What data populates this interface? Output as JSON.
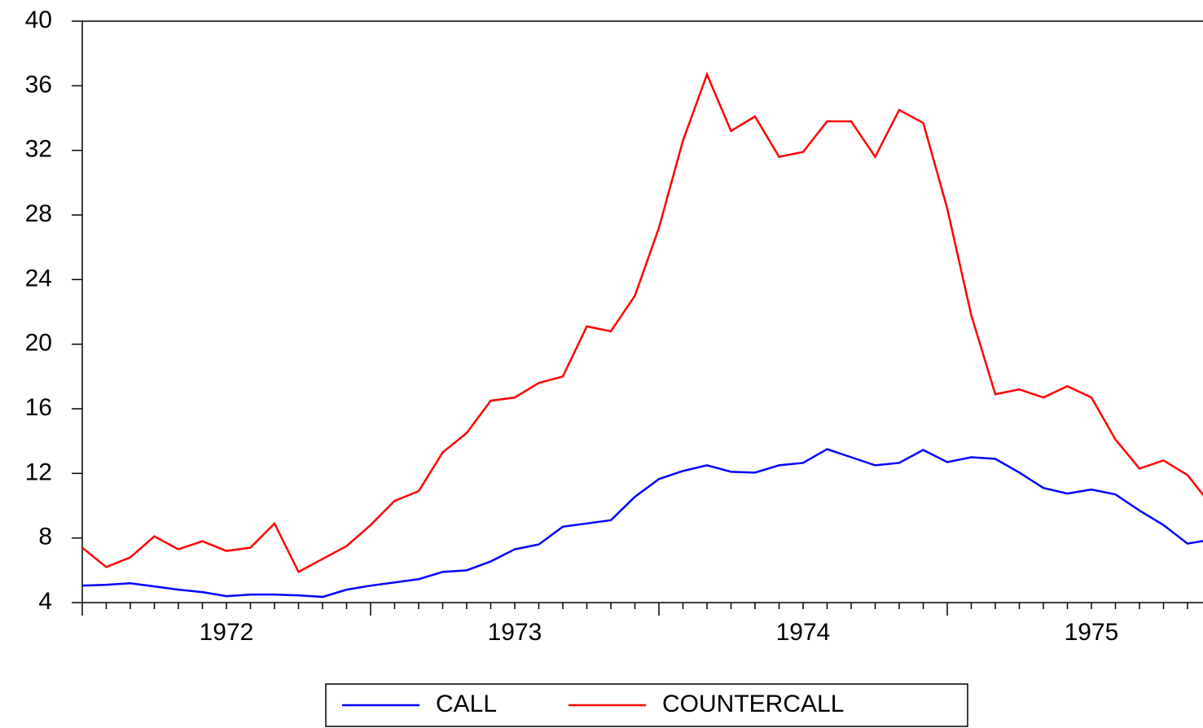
{
  "chart_data": {
    "type": "line",
    "x": [
      1972,
      1972.0833,
      1972.1667,
      1972.25,
      1972.3333,
      1972.4167,
      1972.5,
      1972.5833,
      1972.6667,
      1972.75,
      1972.8333,
      1972.9167,
      1973,
      1973.0833,
      1973.1667,
      1973.25,
      1973.3333,
      1973.4167,
      1973.5,
      1973.5833,
      1973.6667,
      1973.75,
      1973.8333,
      1973.9167,
      1974,
      1974.0833,
      1974.1667,
      1974.25,
      1974.3333,
      1974.4167,
      1974.5,
      1974.5833,
      1974.6667,
      1974.75,
      1974.8333,
      1974.9167,
      1975,
      1975.0833,
      1975.1667,
      1975.25,
      1975.3333,
      1975.4167,
      1975.5,
      1975.5833,
      1975.6667,
      1975.75,
      1975.8333,
      1975.9167
    ],
    "series": [
      {
        "name": "CALL",
        "color": "#0000ff",
        "values": [
          5.05,
          5.1,
          5.2,
          5.0,
          4.8,
          4.65,
          4.4,
          4.5,
          4.5,
          4.45,
          4.35,
          4.8,
          5.05,
          5.25,
          5.45,
          5.9,
          6.0,
          6.55,
          7.3,
          7.6,
          8.7,
          8.9,
          9.1,
          10.55,
          11.65,
          12.15,
          12.5,
          12.1,
          12.05,
          12.5,
          12.65,
          13.5,
          13.0,
          12.5,
          12.65,
          13.45,
          12.7,
          13.0,
          12.9,
          12.05,
          11.1,
          10.75,
          11.0,
          10.7,
          9.7,
          8.8,
          7.65,
          7.9
        ]
      },
      {
        "name": "COUNTERCALL",
        "color": "#ff0000",
        "values": [
          7.4,
          6.2,
          6.8,
          8.1,
          7.3,
          7.8,
          7.2,
          7.4,
          8.9,
          5.9,
          6.7,
          7.5,
          8.8,
          10.3,
          10.9,
          13.3,
          14.5,
          16.5,
          16.7,
          17.6,
          18.0,
          21.1,
          20.8,
          23.0,
          27.2,
          32.6,
          36.7,
          33.2,
          34.1,
          31.6,
          31.9,
          33.8,
          33.8,
          31.6,
          34.5,
          33.7,
          28.4,
          21.8,
          16.9,
          17.2,
          16.7,
          17.4,
          16.7,
          14.1,
          12.3,
          12.8,
          11.9,
          10.0
        ]
      }
    ],
    "xlim": [
      1972,
      1975.887
    ],
    "xticks": [
      {
        "value": 1972.5,
        "label": "1972"
      },
      {
        "value": 1973.5,
        "label": "1973"
      },
      {
        "value": 1974.5,
        "label": "1974"
      },
      {
        "value": 1975.5,
        "label": "1975"
      }
    ],
    "ylim": [
      4,
      40
    ],
    "yticks": [
      4,
      8,
      12,
      16,
      20,
      24,
      28,
      32,
      36,
      40
    ],
    "legend": "bottom"
  }
}
